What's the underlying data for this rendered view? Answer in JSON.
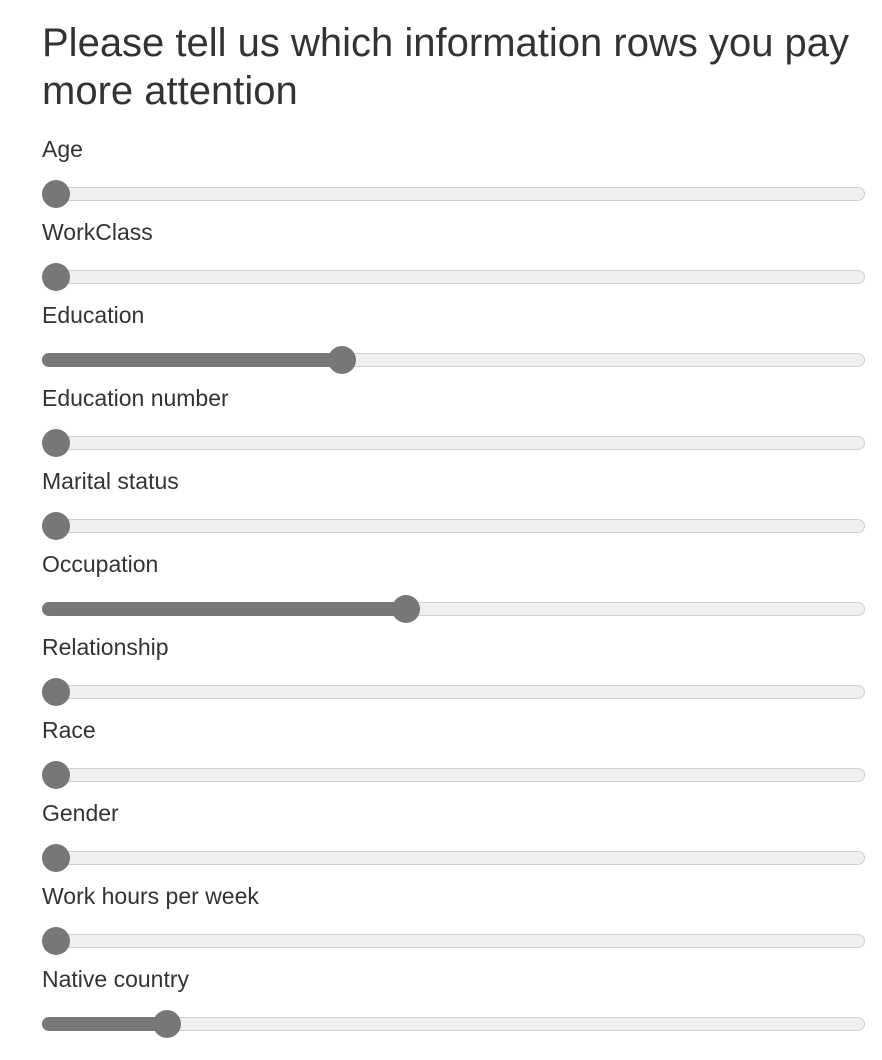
{
  "title": "Please tell us which information rows you pay more attention",
  "colors": {
    "text": "#333333",
    "track": "#efefef",
    "track_border": "#cfcfcf",
    "fill": "#777777",
    "thumb": "#777777"
  },
  "sliders": [
    {
      "label": "Age",
      "value": 0
    },
    {
      "label": "WorkClass",
      "value": 0
    },
    {
      "label": "Education",
      "value": 0.36
    },
    {
      "label": "Education number",
      "value": 0
    },
    {
      "label": "Marital status",
      "value": 0
    },
    {
      "label": "Occupation",
      "value": 0.44
    },
    {
      "label": "Relationship",
      "value": 0
    },
    {
      "label": "Race",
      "value": 0
    },
    {
      "label": "Gender",
      "value": 0
    },
    {
      "label": "Work hours per week",
      "value": 0
    },
    {
      "label": "Native country",
      "value": 0.14
    }
  ]
}
